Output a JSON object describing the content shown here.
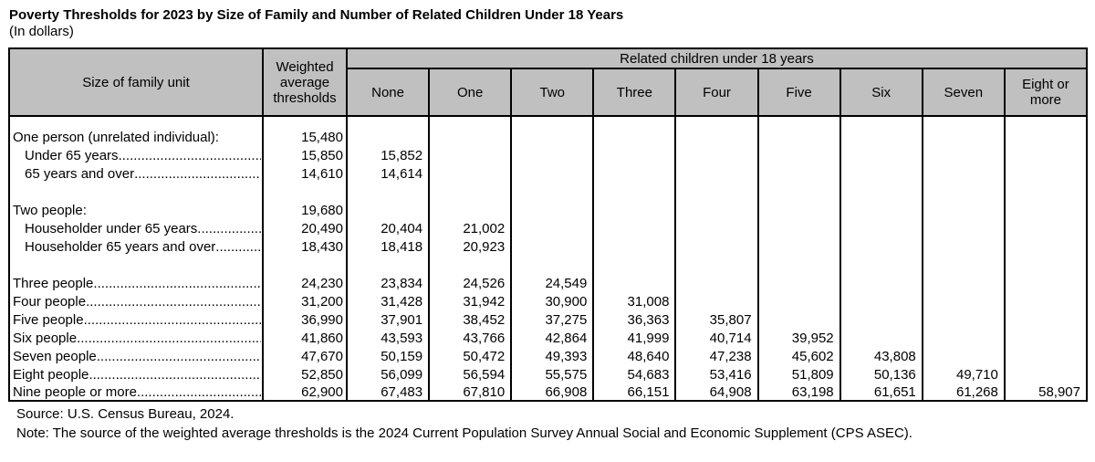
{
  "page": {
    "title": "Poverty Thresholds for 2023 by Size of Family and Number of Related Children Under 18 Years",
    "subtitle": "(In dollars)"
  },
  "table": {
    "corner_header": "Size of family unit",
    "weighted_header": "Weighted average thresholds",
    "banner": "Related children under 18 years",
    "children_headers": [
      "None",
      "One",
      "Two",
      "Three",
      "Four",
      "Five",
      "Six",
      "Seven",
      "Eight or more"
    ],
    "leader_fill": "......................................................................................................................................................",
    "rows": [
      {
        "type": "spacer",
        "height": 12
      },
      {
        "type": "data",
        "label": "One person (unrelated individual):",
        "indent": false,
        "leader": false,
        "weighted": "15,480",
        "children": [
          "",
          "",
          "",
          "",
          "",
          "",
          "",
          "",
          ""
        ]
      },
      {
        "type": "data",
        "label": "Under 65 years",
        "indent": true,
        "leader": true,
        "weighted": "15,850",
        "children": [
          "15,852",
          "",
          "",
          "",
          "",
          "",
          "",
          "",
          ""
        ]
      },
      {
        "type": "data",
        "label": "65 years and over",
        "indent": true,
        "leader": true,
        "weighted": "14,610",
        "children": [
          "14,614",
          "",
          "",
          "",
          "",
          "",
          "",
          "",
          ""
        ]
      },
      {
        "type": "spacer",
        "height": 20
      },
      {
        "type": "data",
        "label": "Two people:",
        "indent": false,
        "leader": false,
        "weighted": "19,680",
        "children": [
          "",
          "",
          "",
          "",
          "",
          "",
          "",
          "",
          ""
        ]
      },
      {
        "type": "data",
        "label": "Householder under 65 years",
        "indent": true,
        "leader": true,
        "weighted": "20,490",
        "children": [
          "20,404",
          "21,002",
          "",
          "",
          "",
          "",
          "",
          "",
          ""
        ]
      },
      {
        "type": "data",
        "label": "Householder 65 years and over",
        "indent": true,
        "leader": true,
        "weighted": "18,430",
        "children": [
          "18,418",
          "20,923",
          "",
          "",
          "",
          "",
          "",
          "",
          ""
        ]
      },
      {
        "type": "spacer",
        "height": 20
      },
      {
        "type": "data",
        "label": "Three people",
        "indent": false,
        "leader": true,
        "weighted": "24,230",
        "children": [
          "23,834",
          "24,526",
          "24,549",
          "",
          "",
          "",
          "",
          "",
          ""
        ]
      },
      {
        "type": "data",
        "label": "Four people",
        "indent": false,
        "leader": true,
        "weighted": "31,200",
        "children": [
          "31,428",
          "31,942",
          "30,900",
          "31,008",
          "",
          "",
          "",
          "",
          ""
        ]
      },
      {
        "type": "data",
        "label": "Five people",
        "indent": false,
        "leader": true,
        "weighted": "36,990",
        "children": [
          "37,901",
          "38,452",
          "37,275",
          "36,363",
          "35,807",
          "",
          "",
          "",
          ""
        ]
      },
      {
        "type": "data",
        "label": "Six people",
        "indent": false,
        "leader": true,
        "weighted": "41,860",
        "children": [
          "43,593",
          "43,766",
          "42,864",
          "41,999",
          "40,714",
          "39,952",
          "",
          "",
          ""
        ]
      },
      {
        "type": "data",
        "label": "Seven people",
        "indent": false,
        "leader": true,
        "weighted": "47,670",
        "children": [
          "50,159",
          "50,472",
          "49,393",
          "48,640",
          "47,238",
          "45,602",
          "43,808",
          "",
          ""
        ]
      },
      {
        "type": "data",
        "label": "Eight people",
        "indent": false,
        "leader": true,
        "weighted": "52,850",
        "children": [
          "56,099",
          "56,594",
          "55,575",
          "54,683",
          "53,416",
          "51,809",
          "50,136",
          "49,710",
          ""
        ]
      },
      {
        "type": "data",
        "label": "Nine people or more",
        "indent": false,
        "leader": true,
        "weighted": "62,900",
        "children": [
          "67,483",
          "67,810",
          "66,908",
          "66,151",
          "64,908",
          "63,198",
          "61,651",
          "61,268",
          "58,907"
        ]
      }
    ]
  },
  "footer": {
    "source": "Source: U.S. Census Bureau, 2024.",
    "note": "Note: The source of the weighted average thresholds is the 2024 Current Population Survey Annual Social and Economic Supplement (CPS ASEC)."
  }
}
